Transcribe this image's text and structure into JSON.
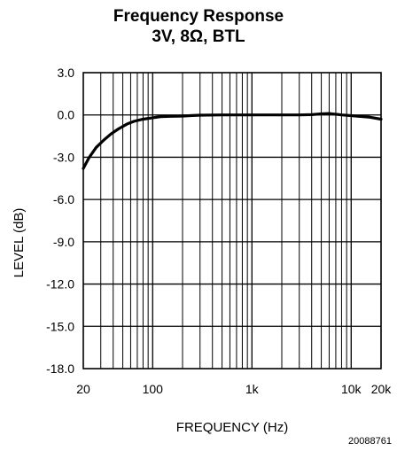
{
  "chart_data": {
    "type": "line",
    "title": "Frequency Response",
    "subtitle": "3V, 8Ω, BTL",
    "xlabel": "FREQUENCY (Hz)",
    "ylabel": "LEVEL (dB)",
    "x_scale": "log",
    "xlim": [
      20,
      20000
    ],
    "ylim": [
      -18,
      3
    ],
    "x_ticks": [
      {
        "value": 20,
        "label": "20"
      },
      {
        "value": 100,
        "label": "100"
      },
      {
        "value": 1000,
        "label": "1k"
      },
      {
        "value": 10000,
        "label": "10k"
      },
      {
        "value": 20000,
        "label": "20k"
      }
    ],
    "y_ticks": [
      {
        "value": 3,
        "label": "3.0"
      },
      {
        "value": 0,
        "label": "0.0"
      },
      {
        "value": -3,
        "label": "-3.0"
      },
      {
        "value": -6,
        "label": "-6.0"
      },
      {
        "value": -9,
        "label": "-9.0"
      },
      {
        "value": -12,
        "label": "-12.0"
      },
      {
        "value": -15,
        "label": "-15.0"
      },
      {
        "value": -18,
        "label": "-18.0"
      }
    ],
    "grid": true,
    "series": [
      {
        "x": [
          20,
          23,
          27,
          32,
          38,
          45,
          55,
          65,
          80,
          100,
          120,
          150,
          200,
          250,
          300,
          500,
          1000,
          2000,
          3000,
          4000,
          5000,
          6000,
          7000,
          8000,
          10000,
          12000,
          15000,
          20000
        ],
        "y": [
          -3.8,
          -3.0,
          -2.3,
          -1.8,
          -1.35,
          -1.0,
          -0.65,
          -0.45,
          -0.3,
          -0.2,
          -0.12,
          -0.1,
          -0.08,
          -0.04,
          -0.02,
          0.0,
          0.0,
          0.0,
          0.0,
          0.02,
          0.08,
          0.1,
          0.05,
          0.0,
          -0.05,
          -0.1,
          -0.15,
          -0.3
        ]
      }
    ]
  },
  "figure_id": "20088761"
}
